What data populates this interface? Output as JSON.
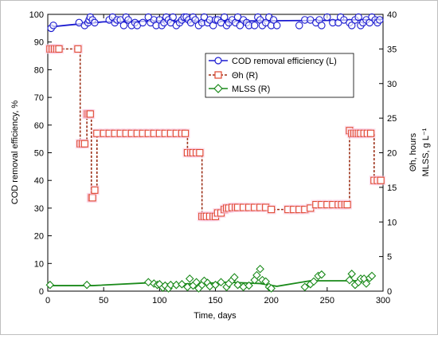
{
  "chart_data": {
    "type": "line",
    "xlabel": "Time, days",
    "ylabel_left": "COD removal efficiency, %",
    "ylabel_right_line1": "Θh, hours",
    "ylabel_right_line2": "MLSS, g L⁻¹",
    "x_range": [
      0,
      300
    ],
    "x_ticks": [
      0,
      50,
      100,
      150,
      200,
      250,
      300
    ],
    "y_left_range": [
      0,
      100
    ],
    "y_left_ticks": [
      0,
      10,
      20,
      30,
      40,
      50,
      60,
      70,
      80,
      90,
      100
    ],
    "y_right_range": [
      0,
      40
    ],
    "y_right_ticks": [
      0,
      5,
      10,
      15,
      20,
      25,
      30,
      35,
      40
    ],
    "grid": false,
    "legend_position": "upper-right",
    "series": [
      {
        "name": "COD removal efficiency (L)",
        "axis": "left",
        "color": "#1a1ad0",
        "marker": "circle",
        "x": [
          3,
          5,
          28,
          33,
          36,
          37,
          38,
          40,
          42,
          55,
          58,
          60,
          62,
          65,
          68,
          70,
          72,
          75,
          78,
          80,
          85,
          90,
          92,
          95,
          97,
          100,
          102,
          104,
          106,
          108,
          110,
          112,
          115,
          118,
          120,
          122,
          124,
          126,
          128,
          130,
          132,
          135,
          138,
          140,
          143,
          145,
          148,
          150,
          152,
          155,
          158,
          160,
          162,
          165,
          168,
          170,
          172,
          175,
          178,
          180,
          185,
          188,
          190,
          192,
          195,
          198,
          200,
          202,
          205,
          225,
          230,
          235,
          240,
          243,
          245,
          250,
          255,
          260,
          262,
          265,
          270,
          272,
          275,
          278,
          280,
          282,
          285,
          288,
          290,
          293,
          295,
          297
        ],
        "y": [
          95,
          96,
          97,
          96,
          97,
          98,
          99,
          98,
          97,
          98,
          99,
          97,
          98,
          98,
          96,
          99,
          98,
          96,
          97,
          96,
          97,
          99,
          97,
          98,
          96,
          98,
          96,
          97,
          99,
          98,
          97,
          99,
          96,
          97,
          98,
          99,
          99,
          98,
          97,
          99,
          98,
          96,
          97,
          99,
          97,
          98,
          96,
          98,
          98,
          97,
          99,
          96,
          97,
          98,
          97,
          99,
          96,
          98,
          97,
          96,
          96,
          99,
          98,
          96,
          97,
          99,
          96,
          98,
          96,
          96,
          98,
          98,
          97,
          98,
          96,
          99,
          97,
          97,
          99,
          98,
          97,
          96,
          98,
          99,
          96,
          97,
          98,
          97,
          99,
          98,
          97,
          98
        ],
        "trend_x": [
          3,
          20,
          50,
          100,
          150,
          200,
          250,
          300
        ],
        "trend_y": [
          95.5,
          96.2,
          97.3,
          97.6,
          97.5,
          97.7,
          97.8,
          98.2
        ]
      },
      {
        "name": "Θh (R)",
        "axis": "right",
        "color": "#e04830",
        "line_color": "#9b2d14",
        "marker": "square",
        "x": [
          2,
          4,
          6,
          8,
          10,
          27,
          29,
          31,
          33,
          35,
          36,
          37,
          38,
          39,
          40,
          42,
          44,
          50,
          55,
          60,
          65,
          70,
          75,
          80,
          85,
          90,
          95,
          100,
          105,
          110,
          115,
          120,
          123,
          125,
          128,
          130,
          133,
          136,
          138,
          140,
          142,
          145,
          148,
          150,
          152,
          155,
          158,
          160,
          162,
          165,
          168,
          170,
          175,
          180,
          185,
          190,
          195,
          200,
          215,
          220,
          225,
          230,
          235,
          240,
          245,
          250,
          255,
          260,
          263,
          266,
          268,
          270,
          272,
          274,
          276,
          278,
          280,
          283,
          286,
          289,
          292,
          295,
          298
        ],
        "y": [
          35,
          35,
          35,
          35,
          35,
          35,
          21.3,
          21.3,
          21.3,
          25.6,
          25.6,
          25.6,
          25.6,
          13.5,
          13.5,
          14.6,
          22.8,
          22.8,
          22.8,
          22.8,
          22.8,
          22.8,
          22.8,
          22.8,
          22.8,
          22.8,
          22.8,
          22.8,
          22.8,
          22.8,
          22.8,
          22.8,
          22.8,
          20,
          20,
          20,
          20,
          20,
          10.8,
          10.8,
          10.8,
          10.8,
          10.8,
          10.8,
          11.3,
          11.3,
          11.8,
          12,
          12,
          12.1,
          12.1,
          12.1,
          12.1,
          12.1,
          12.1,
          12.1,
          12.1,
          11.8,
          11.8,
          11.8,
          11.8,
          11.8,
          12,
          12.5,
          12.5,
          12.5,
          12.5,
          12.5,
          12.5,
          12.5,
          12.5,
          23.2,
          22.8,
          22.8,
          22.8,
          22.8,
          22.8,
          22.8,
          22.8,
          22.8,
          16,
          16,
          16
        ]
      },
      {
        "name": "MLSS (R)",
        "axis": "right",
        "color": "#1a8a1a",
        "marker": "diamond",
        "x": [
          2,
          35,
          90,
          95,
          98,
          100,
          103,
          105,
          108,
          110,
          115,
          120,
          125,
          127,
          130,
          133,
          135,
          138,
          140,
          143,
          145,
          150,
          155,
          160,
          162,
          165,
          167,
          170,
          175,
          180,
          185,
          187,
          190,
          192,
          195,
          198,
          200,
          230,
          235,
          238,
          242,
          245,
          270,
          272,
          275,
          278,
          280,
          283,
          285,
          288,
          290
        ],
        "y": [
          0.9,
          0.9,
          1.3,
          1.1,
          0.9,
          1.0,
          0.5,
          0.8,
          0.4,
          0.9,
          0.9,
          1.0,
          0.6,
          1.8,
          0.8,
          1.3,
          0.4,
          0.9,
          1.5,
          1.2,
          0.7,
          0.9,
          1.3,
          0.6,
          1.1,
          1.6,
          2.0,
          0.9,
          0.6,
          0.8,
          1.6,
          2.3,
          3.2,
          1.6,
          1.4,
          0.6,
          0.4,
          0.6,
          1.0,
          1.4,
          2.2,
          2.4,
          1.6,
          2.5,
          0.9,
          1.3,
          1.8,
          1.8,
          1.1,
          1.9,
          2.2
        ],
        "trend_x": [
          2,
          40,
          90,
          100,
          140,
          160,
          190,
          205,
          235,
          255,
          275,
          290
        ],
        "trend_y": [
          0.8,
          0.8,
          1.2,
          1.0,
          1.1,
          1.3,
          1.1,
          0.7,
          1.5,
          1.5,
          1.5,
          1.7
        ]
      }
    ]
  }
}
